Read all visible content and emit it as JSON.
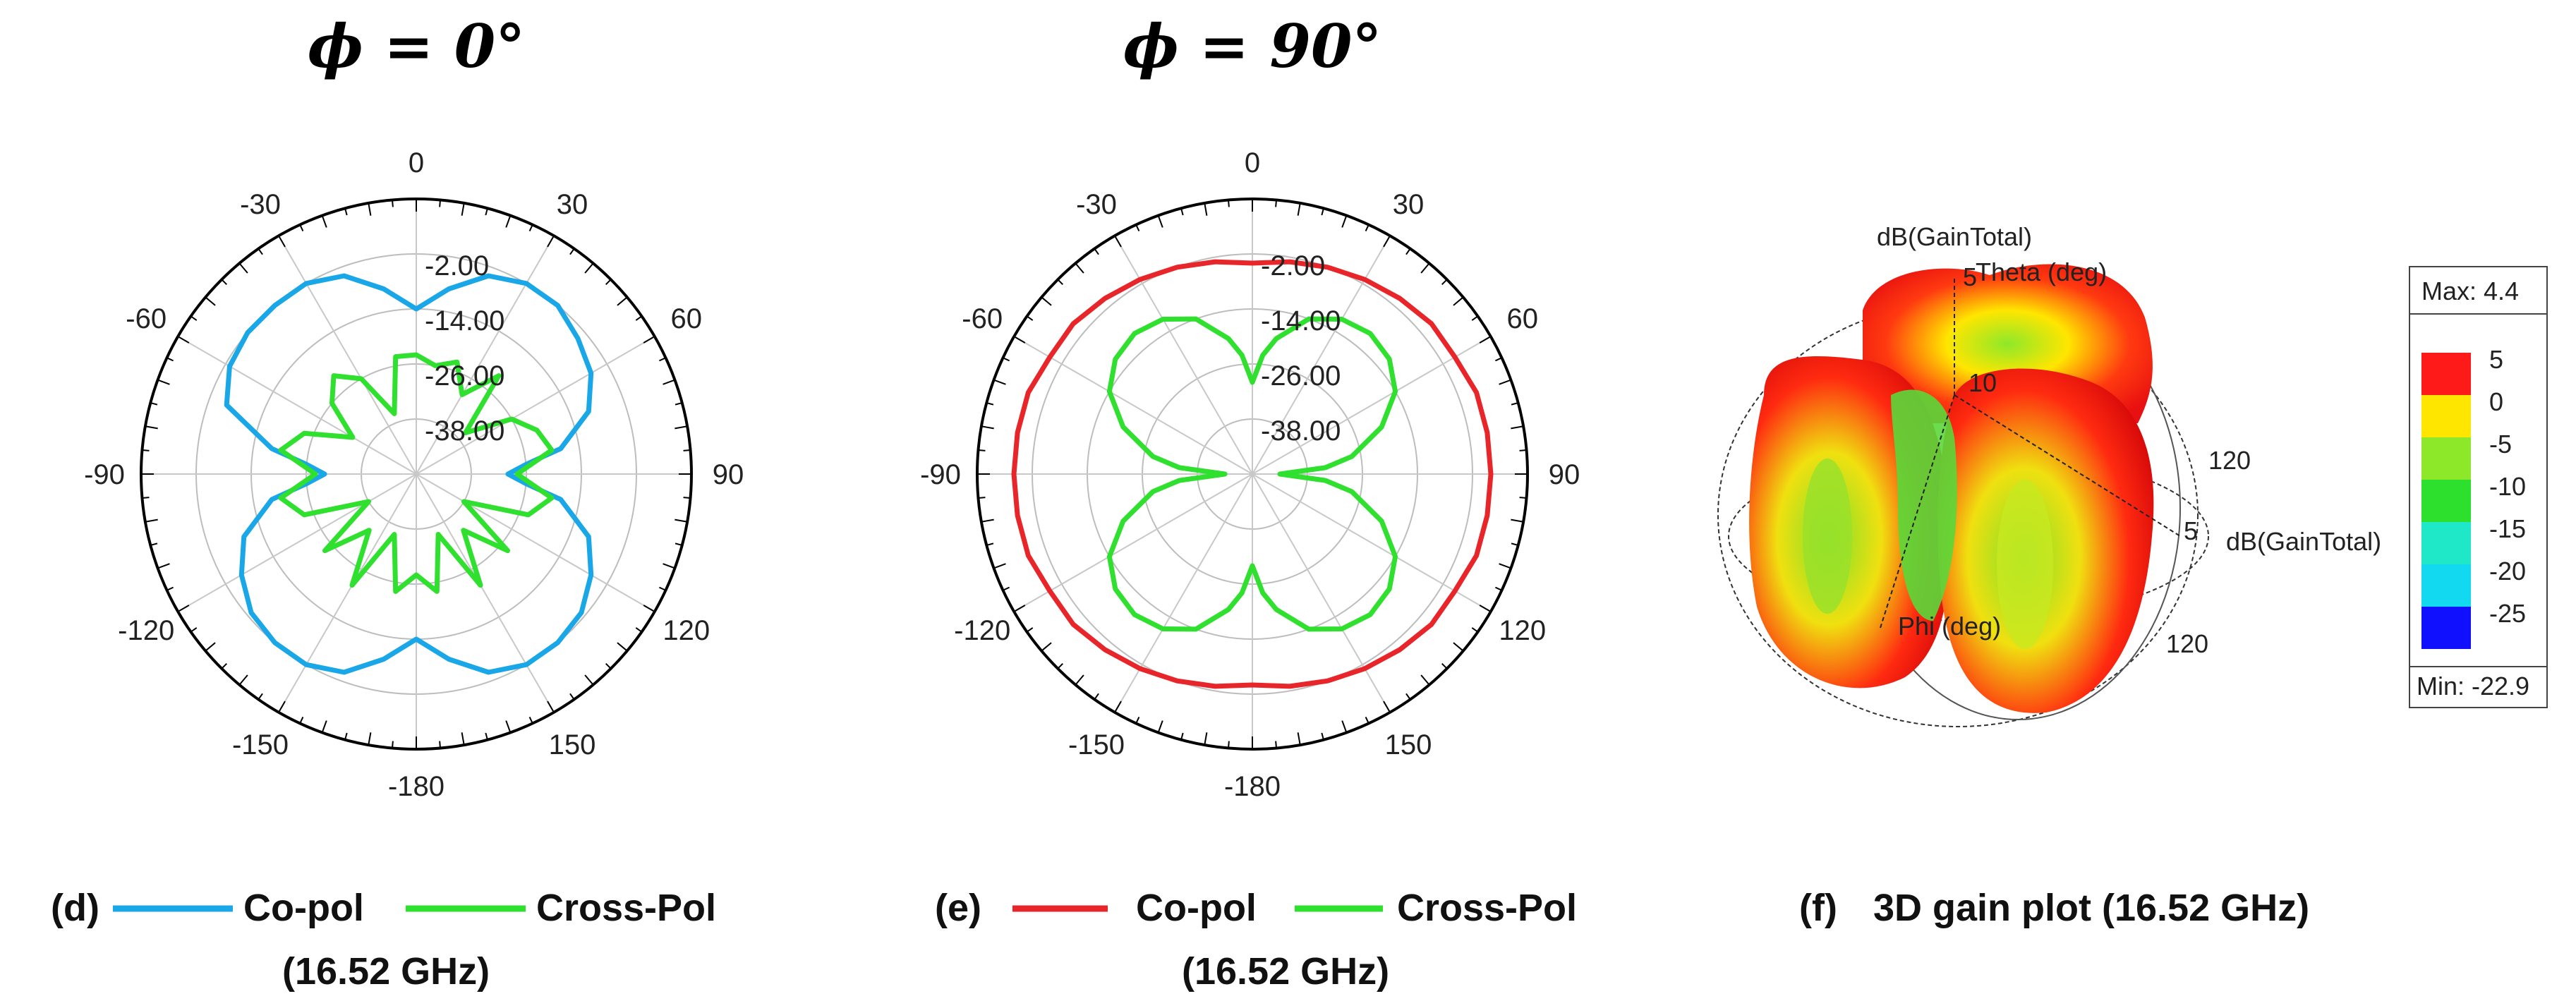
{
  "chart_data": [
    {
      "type": "polar",
      "panel": "d",
      "title": "ϕ = 0°",
      "angle_ticks": [
        0,
        30,
        60,
        90,
        120,
        150,
        -180,
        -150,
        -120,
        -90,
        -60,
        -30
      ],
      "radial_ticks": [
        -2.0,
        -14.0,
        -26.0,
        -38.0
      ],
      "radial_tick_labels": [
        "-2.00",
        "-14.00",
        "-26.00",
        "-38.00"
      ],
      "rlim": [
        -50,
        10
      ],
      "legend_label": "(d)",
      "series": [
        {
          "name": "Co-pol",
          "color": "#1aa7e8",
          "theta": [
            0,
            10,
            20,
            30,
            40,
            50,
            60,
            70,
            80,
            85,
            90,
            95,
            100,
            110,
            120,
            130,
            140,
            150,
            160,
            170,
            180,
            190,
            200,
            210,
            220,
            230,
            240,
            250,
            260,
            265,
            270,
            275,
            280,
            290,
            300,
            310,
            320,
            330,
            340,
            350
          ],
          "r": [
            -14,
            -9,
            -4,
            -2,
            -2,
            -4,
            -6,
            -10,
            -18,
            -26,
            -30,
            -26,
            -18,
            -10,
            -6,
            -3,
            -2,
            -2,
            -4,
            -9,
            -14,
            -9,
            -4,
            -2,
            -2,
            -3,
            -6,
            -10,
            -18,
            -26,
            -30,
            -26,
            -18,
            -6,
            -3,
            -2,
            -2,
            -2,
            -4,
            -9
          ]
        },
        {
          "name": "Cross-Pol",
          "color": "#2fe02f",
          "theta": [
            0,
            10,
            20,
            30,
            40,
            50,
            60,
            70,
            80,
            90,
            100,
            110,
            120,
            130,
            140,
            150,
            160,
            170,
            180,
            190,
            200,
            210,
            220,
            230,
            240,
            250,
            260,
            270,
            280,
            290,
            300,
            310,
            320,
            330,
            340,
            350
          ],
          "r": [
            -24,
            -26,
            -24,
            -30,
            -22,
            -36,
            -26,
            -22,
            -20,
            -28,
            -20,
            -24,
            -38,
            -24,
            -34,
            -22,
            -36,
            -24,
            -28,
            -24,
            -36,
            -22,
            -34,
            -24,
            -38,
            -24,
            -20,
            -28,
            -20,
            -24,
            -34,
            -26,
            -22,
            -26,
            -36,
            -24
          ]
        }
      ]
    },
    {
      "type": "polar",
      "panel": "e",
      "title": "ϕ = 90°",
      "angle_ticks": [
        0,
        30,
        60,
        90,
        120,
        150,
        -180,
        -150,
        -120,
        -90,
        -60,
        -30
      ],
      "radial_ticks": [
        -2.0,
        -14.0,
        -26.0,
        -38.0
      ],
      "radial_tick_labels": [
        "-2.00",
        "-14.00",
        "-26.00",
        "-38.00"
      ],
      "rlim": [
        -50,
        10
      ],
      "legend_label": "(e)",
      "series": [
        {
          "name": "Co-pol",
          "color": "#e8262a",
          "theta": [
            0,
            10,
            20,
            30,
            40,
            50,
            60,
            70,
            80,
            90,
            100,
            110,
            120,
            130,
            140,
            150,
            160,
            170,
            180,
            190,
            200,
            210,
            220,
            230,
            240,
            250,
            260,
            270,
            280,
            290,
            300,
            310,
            320,
            330,
            340,
            350
          ],
          "r": [
            -4,
            -3,
            -2,
            -1,
            0,
            1,
            1,
            2,
            2,
            2,
            2,
            2,
            1,
            1,
            0,
            -1,
            -2,
            -3,
            -4,
            -3,
            -2,
            -1,
            0,
            1,
            1,
            2,
            2,
            2,
            2,
            2,
            1,
            1,
            0,
            -1,
            -2,
            -3
          ]
        },
        {
          "name": "Cross-Pol",
          "color": "#2fe02f",
          "theta": [
            0,
            5,
            10,
            20,
            30,
            40,
            50,
            60,
            70,
            80,
            85,
            90,
            95,
            100,
            110,
            120,
            130,
            140,
            150,
            160,
            170,
            175,
            180,
            185,
            190,
            200,
            210,
            220,
            230,
            240,
            250,
            260,
            265,
            270,
            275,
            280,
            290,
            300,
            310,
            320,
            330,
            340,
            350,
            355
          ],
          "r": [
            -30,
            -24,
            -20,
            -14,
            -11,
            -10,
            -11,
            -14,
            -20,
            -28,
            -34,
            -44,
            -34,
            -28,
            -20,
            -14,
            -11,
            -10,
            -11,
            -14,
            -20,
            -24,
            -30,
            -24,
            -20,
            -14,
            -11,
            -10,
            -11,
            -14,
            -20,
            -28,
            -34,
            -44,
            -34,
            -28,
            -20,
            -14,
            -11,
            -10,
            -11,
            -14,
            -20,
            -24
          ]
        }
      ]
    },
    {
      "type": "3d-surface",
      "panel": "f",
      "axis_label_top": "dB(GainTotal)",
      "theta_label": "Theta (deg)",
      "phi_label": "Phi (deg)",
      "right_axis_label": "dB(GainTotal)",
      "ticks_text": [
        "5",
        "10",
        "120",
        "5",
        "120"
      ],
      "colorbar": {
        "max_label": "Max: 4.4",
        "min_label": "Min: -22.9",
        "levels": [
          {
            "label": "5",
            "color": "#ff1a1a"
          },
          {
            "label": "0",
            "color": "#ffe600"
          },
          {
            "label": "-5",
            "color": "#8ee82a"
          },
          {
            "label": "-10",
            "color": "#2ee02e"
          },
          {
            "label": "-15",
            "color": "#1ee8c8"
          },
          {
            "label": "-20",
            "color": "#12d8f0"
          },
          {
            "label": "-25",
            "color": "#1010ff"
          }
        ]
      }
    }
  ],
  "captions": {
    "d_label": "(d)",
    "d_copol": "Co-pol",
    "d_crosspol": "Cross-Pol",
    "d_freq": "(16.52 GHz)",
    "e_label": "(e)",
    "e_copol": "Co-pol",
    "e_crosspol": "Cross-Pol",
    "e_freq": "(16.52 GHz)",
    "f_label": "(f)",
    "f_text": "3D gain plot (16.52 GHz)"
  }
}
